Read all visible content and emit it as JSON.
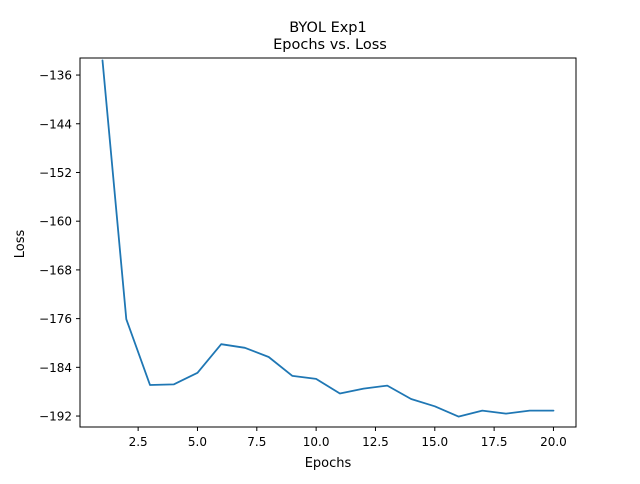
{
  "chart_data": {
    "type": "line",
    "title_line1": "BYOL Exp1",
    "title_line2": "Epochs vs. Loss",
    "xlabel": "Epochs",
    "ylabel": "Loss",
    "xlim": [
      0.05,
      20.95
    ],
    "ylim": [
      -193.8,
      -133.2
    ],
    "xticks": [
      2.5,
      5.0,
      7.5,
      10.0,
      12.5,
      15.0,
      17.5,
      20.0
    ],
    "xtick_labels": [
      "2.5",
      "5.0",
      "7.5",
      "10.0",
      "12.5",
      "15.0",
      "17.5",
      "20.0"
    ],
    "yticks": [
      -136,
      -144,
      -152,
      -160,
      -168,
      -176,
      -184,
      -192
    ],
    "ytick_labels": [
      "−136",
      "−144",
      "−152",
      "−160",
      "−168",
      "−176",
      "−184",
      "−192"
    ],
    "grid": false,
    "line_color": "#1f77b4",
    "series": [
      {
        "x": [
          1,
          2,
          3,
          4,
          5,
          6,
          7,
          8,
          9,
          10,
          11,
          12,
          13,
          14,
          15,
          16,
          17,
          18,
          19,
          20
        ],
        "y": [
          -133.6,
          -176.1,
          -186.9,
          -186.8,
          -184.9,
          -180.2,
          -180.8,
          -182.3,
          -185.4,
          -185.9,
          -188.3,
          -187.5,
          -187.0,
          -189.2,
          -190.4,
          -192.1,
          -191.1,
          -191.6,
          -191.1,
          -191.1
        ]
      }
    ]
  }
}
